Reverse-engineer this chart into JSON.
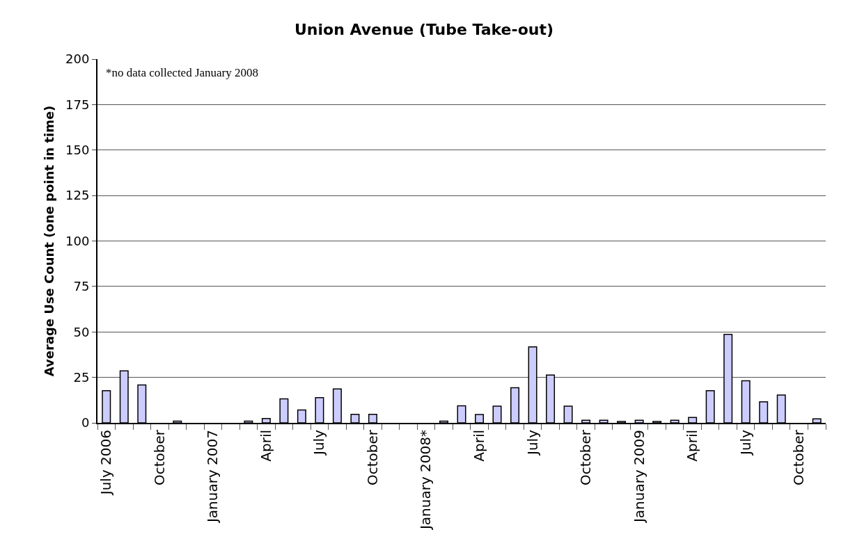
{
  "chart_data": {
    "type": "bar",
    "title": "Union Avenue (Tube Take-out)",
    "ylabel": "Average Use Count (one point in time)",
    "categories": [
      "July 2006",
      null,
      null,
      "October",
      null,
      null,
      "January 2007",
      null,
      null,
      "April",
      null,
      null,
      "July",
      null,
      null,
      "October",
      null,
      null,
      "January 2008*",
      null,
      null,
      "April",
      null,
      null,
      "July",
      null,
      null,
      "October",
      null,
      null,
      "January 2009",
      null,
      null,
      "April",
      null,
      null,
      "July",
      null,
      null,
      "October",
      null
    ],
    "values": [
      17.7,
      28.6,
      20.8,
      0,
      1,
      0,
      0,
      0,
      1,
      2.4,
      13.2,
      7.1,
      13.9,
      18.6,
      4.7,
      4.7,
      0,
      0,
      0,
      1,
      9.4,
      4.6,
      9.2,
      19.3,
      41.8,
      26.3,
      9.2,
      1.4,
      1.4,
      0.8,
      1.4,
      0.8,
      1.4,
      3.0,
      17.7,
      48.7,
      23.1,
      11.6,
      15.3,
      0,
      2.2
    ],
    "color": "#ccccff",
    "ylim": [
      0,
      200
    ],
    "yticks": [
      0,
      25,
      50,
      75,
      100,
      125,
      150,
      175,
      200
    ],
    "grid": "y",
    "annotations": [
      "*no data collected January 2008"
    ]
  }
}
